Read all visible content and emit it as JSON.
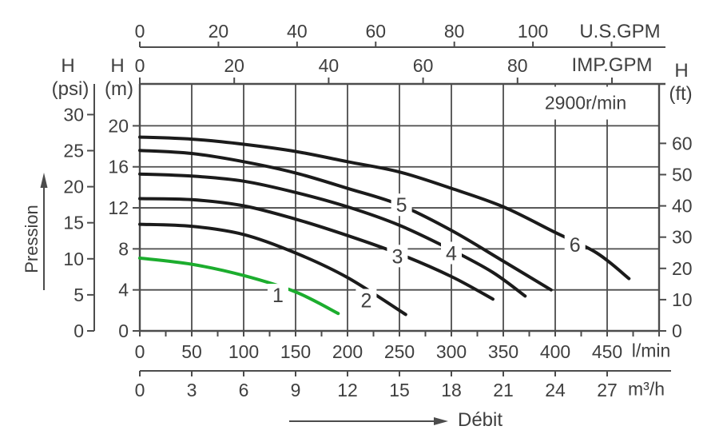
{
  "chart_data": {
    "type": "line",
    "annotation": "2900r/min",
    "x_unit_primary": "l/min",
    "y_unit_primary": "m",
    "x_range_lmin": [
      0,
      500
    ],
    "y_range_m": [
      0,
      24
    ],
    "grid": "on",
    "axes": {
      "top_us_gpm": {
        "unit": "U.S.GPM",
        "ticks": [
          0,
          20,
          40,
          60,
          80,
          100
        ],
        "extra_unlabeled_tick": 120
      },
      "top_imp_gpm": {
        "unit": "IMP.GPM",
        "ticks": [
          0,
          20,
          40,
          60,
          80
        ],
        "extra_unlabeled_tick": 100
      },
      "bottom_lmin": {
        "unit": "l/min",
        "ticks": [
          0,
          50,
          100,
          150,
          200,
          250,
          300,
          350,
          400,
          450
        ],
        "minor_step": 25
      },
      "bottom_m3h": {
        "unit": "m³/h",
        "ticks": [
          0,
          3,
          6,
          9,
          12,
          15,
          18,
          21,
          24,
          27
        ]
      },
      "left_psi": {
        "header": "H",
        "unit": "(psi)",
        "ticks": [
          0,
          5,
          10,
          15,
          20,
          25,
          30
        ]
      },
      "left_m": {
        "header": "H",
        "unit": "(m)",
        "ticks": [
          0,
          4,
          8,
          12,
          16,
          20
        ]
      },
      "right_ft": {
        "header": "H",
        "unit": "(ft)",
        "ticks": [
          0,
          10,
          20,
          30,
          40,
          50,
          60
        ]
      }
    },
    "axis_arrows": {
      "y": "Pression",
      "x": "Débit"
    },
    "colors": {
      "line": "#4c4c4c",
      "text": "#3f3f3f",
      "curve": "#1b1b1b",
      "green": "#1cad2e"
    },
    "series": [
      {
        "name": "1",
        "color": "#1cad2e",
        "label_at": [
          133,
          3.5
        ],
        "points": [
          [
            0,
            7.1
          ],
          [
            50,
            6.5
          ],
          [
            100,
            5.4
          ],
          [
            150,
            3.8
          ],
          [
            191,
            1.7
          ]
        ]
      },
      {
        "name": "2",
        "color": "#1b1b1b",
        "label_at": [
          218,
          3.0
        ],
        "points": [
          [
            0,
            10.4
          ],
          [
            50,
            10.2
          ],
          [
            100,
            9.4
          ],
          [
            150,
            7.6
          ],
          [
            200,
            5.2
          ],
          [
            256,
            1.6
          ]
        ]
      },
      {
        "name": "3",
        "color": "#1b1b1b",
        "label_at": [
          248,
          7.3
        ],
        "points": [
          [
            0,
            12.9
          ],
          [
            50,
            12.8
          ],
          [
            100,
            12.2
          ],
          [
            150,
            10.9
          ],
          [
            200,
            9.3
          ],
          [
            250,
            7.5
          ],
          [
            300,
            5.3
          ],
          [
            340,
            3.1
          ]
        ]
      },
      {
        "name": "4",
        "color": "#1b1b1b",
        "label_at": [
          300,
          7.6
        ],
        "points": [
          [
            0,
            15.3
          ],
          [
            50,
            15.1
          ],
          [
            100,
            14.6
          ],
          [
            150,
            13.5
          ],
          [
            200,
            12.1
          ],
          [
            250,
            10.3
          ],
          [
            300,
            7.9
          ],
          [
            340,
            5.7
          ],
          [
            371,
            3.4
          ]
        ]
      },
      {
        "name": "5",
        "color": "#1b1b1b",
        "label_at": [
          252,
          12.3
        ],
        "points": [
          [
            0,
            17.6
          ],
          [
            50,
            17.3
          ],
          [
            100,
            16.5
          ],
          [
            150,
            15.4
          ],
          [
            200,
            13.9
          ],
          [
            250,
            12.3
          ],
          [
            300,
            9.8
          ],
          [
            350,
            6.8
          ],
          [
            396,
            4.0
          ]
        ]
      },
      {
        "name": "6",
        "color": "#1b1b1b",
        "label_at": [
          419,
          8.4
        ],
        "points": [
          [
            0,
            18.9
          ],
          [
            50,
            18.7
          ],
          [
            100,
            18.2
          ],
          [
            150,
            17.5
          ],
          [
            200,
            16.5
          ],
          [
            250,
            15.5
          ],
          [
            300,
            13.9
          ],
          [
            350,
            12.1
          ],
          [
            400,
            9.6
          ],
          [
            440,
            7.6
          ],
          [
            471,
            5.1
          ]
        ]
      }
    ]
  }
}
